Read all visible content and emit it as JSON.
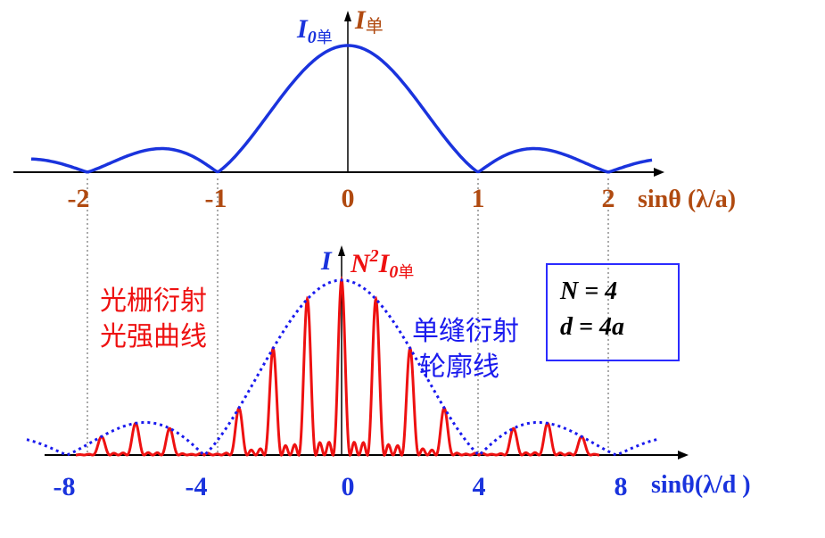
{
  "top_plot": {
    "y_label_main": "I",
    "y_label_sub": "单",
    "peak_label_main": "I",
    "peak_label_sub0": "0",
    "peak_label_sub1": "单",
    "x_ticks": [
      "-2",
      "-1",
      "0",
      "1",
      "2"
    ],
    "x_axis_label": "sinθ (λ/a)",
    "colors": {
      "curve": "#1a33dd",
      "axis": "#000000",
      "tick_text": "#b04a10"
    }
  },
  "bottom_plot": {
    "y_label": "I",
    "peak_label_main": "N",
    "peak_label_sup": "2",
    "peak_label_I": "I",
    "peak_label_sub0": "0",
    "peak_label_sub1": "单",
    "x_ticks": [
      "-8",
      "-4",
      "0",
      "4",
      "8"
    ],
    "x_axis_label": "sinθ(λ/d )",
    "grating_label_line1": "光栅衍射",
    "grating_label_line2": "光强曲线",
    "envelope_label_line1": "单缝衍射",
    "envelope_label_line2": "轮廓线",
    "colors": {
      "grating": "#ee1111",
      "envelope": "#1a1aee",
      "tick_text": "#1a33dd"
    }
  },
  "info_box": {
    "line1": "N = 4",
    "line2": "d = 4a"
  },
  "chart_data": {
    "type": "line",
    "N": 4,
    "d_over_a": 4,
    "single_slit_zeros": [
      -2,
      -1,
      1,
      2
    ],
    "grating_zeros_missing_orders": [
      -8,
      -4,
      4,
      8
    ]
  }
}
